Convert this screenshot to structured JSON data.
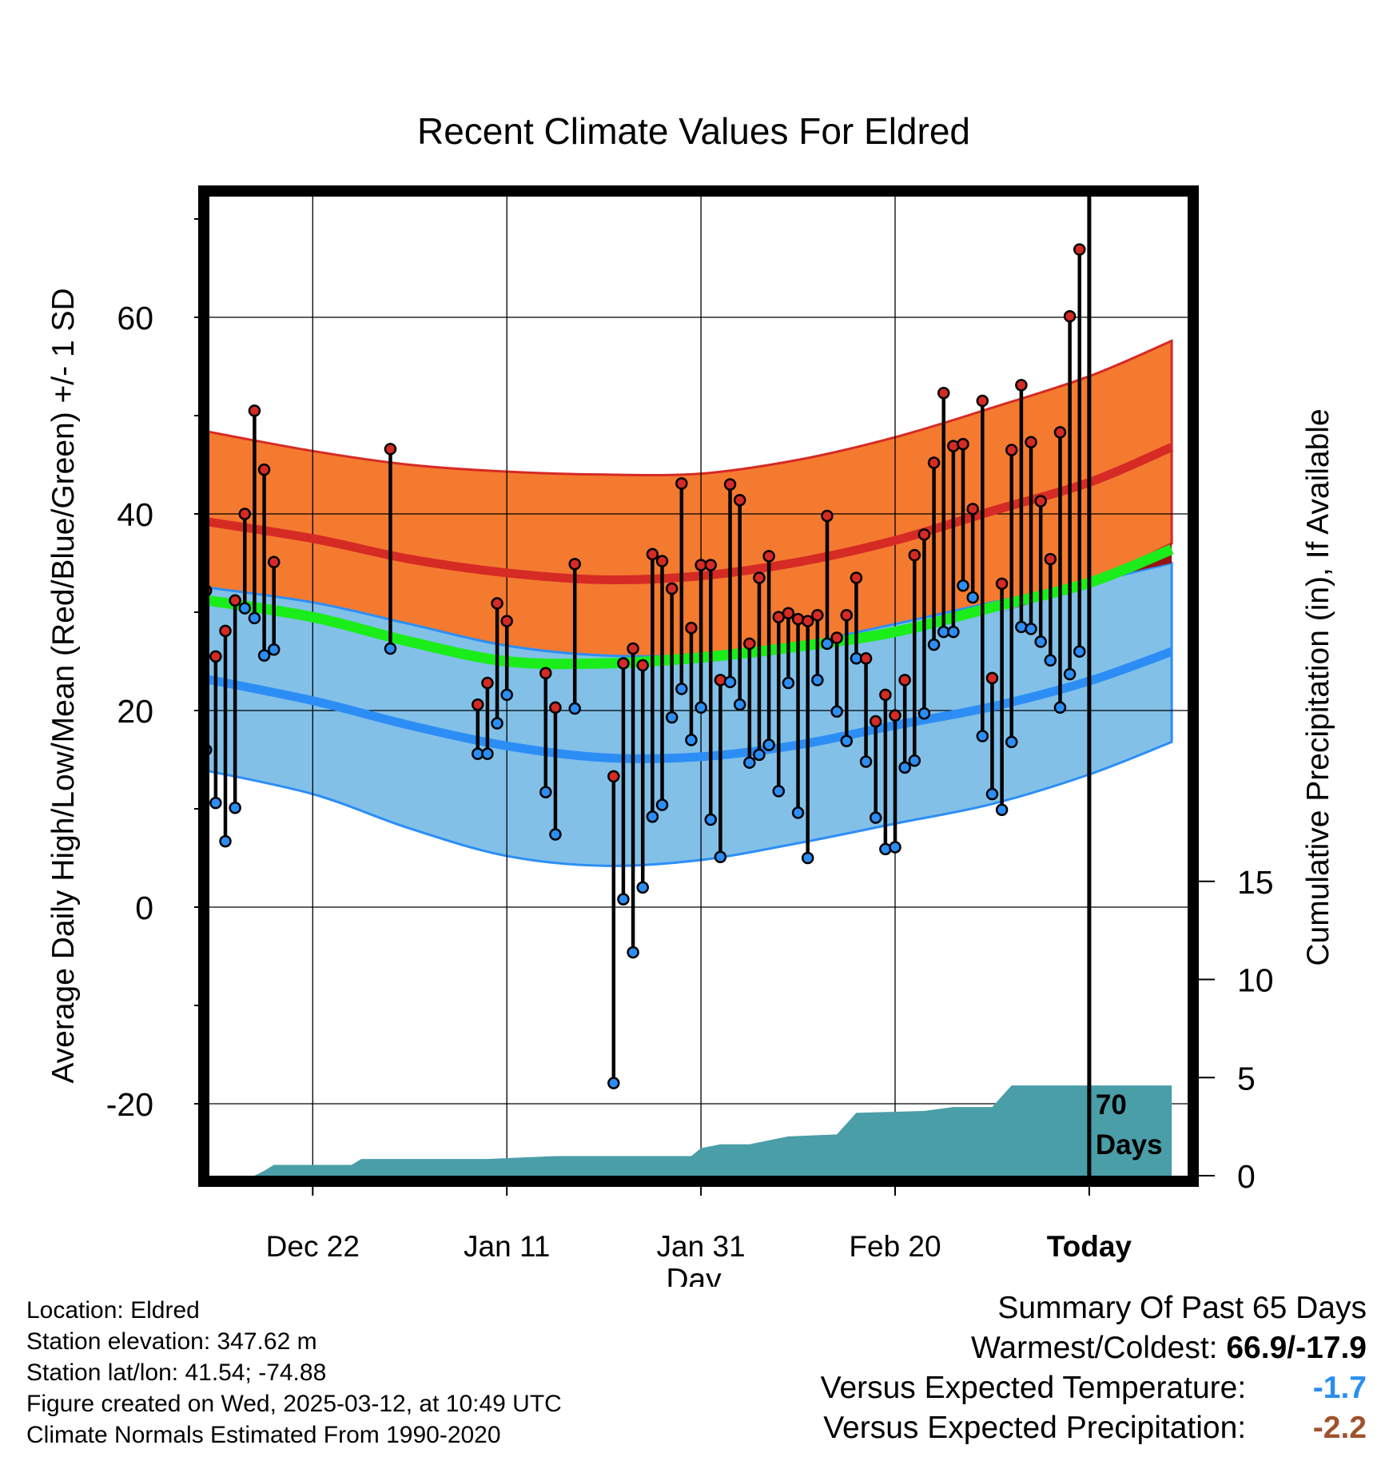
{
  "chart_data": {
    "type": "line",
    "title": "Recent Climate Values For Eldred",
    "xlabel": "Day",
    "ylabel": "Average Daily High/Low/Mean (Red/Blue/Green) +/- 1 SD",
    "y2label": "Cumulative Precipitation (in), If Available",
    "ylim": [
      -27.5,
      72
    ],
    "y2lim": [
      0,
      50
    ],
    "xlim": [
      -70,
      10
    ],
    "grid": true,
    "yticks": [
      "60",
      "40",
      "20",
      "0",
      "-20"
    ],
    "y2ticks": [
      "15",
      "10",
      "5",
      "0"
    ],
    "xticks": [
      {
        "day": -60,
        "label": "Dec 22"
      },
      {
        "day": -40,
        "label": "Jan 11"
      },
      {
        "day": -20,
        "label": "Jan 31"
      },
      {
        "day": 0,
        "label": "Feb 20"
      },
      {
        "day": 20,
        "label": "Today"
      }
    ],
    "today_label": [
      "70",
      "Days"
    ],
    "normals": {
      "days": [
        -71.5,
        -60,
        -50,
        -40,
        -30,
        -20,
        -10,
        0,
        10,
        20,
        28.5
      ],
      "high_mean": [
        39.3,
        37.5,
        35.4,
        34.0,
        33.3,
        33.7,
        35.1,
        37.3,
        40.3,
        43.2,
        46.8
      ],
      "high_sd_upper": [
        48.5,
        46.4,
        45.0,
        44.3,
        44.0,
        44.1,
        45.5,
        47.8,
        50.8,
        54.0,
        57.6
      ],
      "high_sd_lower": [
        31.5,
        29.0,
        26.5,
        24.5,
        23.0,
        23.2,
        25.0,
        27.0,
        29.7,
        33.0,
        37.0
      ],
      "low_mean": [
        23.3,
        21.0,
        18.5,
        16.4,
        15.2,
        15.3,
        16.5,
        18.5,
        20.4,
        23.0,
        26.0
      ],
      "low_sd_upper": [
        32.6,
        31.0,
        28.8,
        26.6,
        25.6,
        25.7,
        26.8,
        28.8,
        31.0,
        33.0,
        35.0
      ],
      "low_sd_lower": [
        14.0,
        11.5,
        8.0,
        5.2,
        4.2,
        4.8,
        6.5,
        8.5,
        10.5,
        13.5,
        16.8
      ],
      "mean": [
        31.3,
        29.5,
        27.0,
        25.0,
        24.8,
        25.4,
        26.5,
        28.0,
        30.5,
        33.0,
        36.4
      ]
    },
    "daily": [
      {
        "day": -71,
        "high": 32.2,
        "low": 16.0
      },
      {
        "day": -70,
        "high": 25.5,
        "low": 10.6
      },
      {
        "day": -69,
        "high": 28.1,
        "low": 6.7
      },
      {
        "day": -68,
        "high": 31.2,
        "low": 10.1
      },
      {
        "day": -67,
        "high": 40.0,
        "low": 30.4
      },
      {
        "day": -66,
        "high": 50.5,
        "low": 29.4
      },
      {
        "day": -65,
        "high": 44.5,
        "low": 25.6
      },
      {
        "day": -64,
        "high": 35.1,
        "low": 26.2
      },
      {
        "day": -52,
        "high": 46.6,
        "low": 26.3
      },
      {
        "day": -43,
        "high": 20.6,
        "low": 15.6
      },
      {
        "day": -42,
        "high": 22.8,
        "low": 15.6
      },
      {
        "day": -41,
        "high": 30.9,
        "low": 18.7
      },
      {
        "day": -40,
        "high": 29.1,
        "low": 21.6
      },
      {
        "day": -36,
        "high": 23.8,
        "low": 11.7
      },
      {
        "day": -35,
        "high": 20.3,
        "low": 7.4
      },
      {
        "day": -33,
        "high": 34.9,
        "low": 20.2
      },
      {
        "day": -29,
        "high": 13.3,
        "low": -17.9
      },
      {
        "day": -28,
        "high": 24.8,
        "low": 0.8
      },
      {
        "day": -27,
        "high": 26.3,
        "low": -4.6
      },
      {
        "day": -26,
        "high": 24.6,
        "low": 2.0
      },
      {
        "day": -25,
        "high": 35.9,
        "low": 9.2
      },
      {
        "day": -24,
        "high": 35.2,
        "low": 10.4
      },
      {
        "day": -23,
        "high": 32.4,
        "low": 19.3
      },
      {
        "day": -22,
        "high": 43.1,
        "low": 22.2
      },
      {
        "day": -21,
        "high": 28.4,
        "low": 17.0
      },
      {
        "day": -20,
        "high": 34.8,
        "low": 20.3
      },
      {
        "day": -19,
        "high": 34.8,
        "low": 8.9
      },
      {
        "day": -18,
        "high": 23.1,
        "low": 5.1
      },
      {
        "day": -17,
        "high": 43.0,
        "low": 22.9
      },
      {
        "day": -16,
        "high": 41.4,
        "low": 20.6
      },
      {
        "day": -15,
        "high": 26.8,
        "low": 14.7
      },
      {
        "day": -14,
        "high": 33.5,
        "low": 15.5
      },
      {
        "day": -13,
        "high": 35.7,
        "low": 16.5
      },
      {
        "day": -12,
        "high": 29.5,
        "low": 11.8
      },
      {
        "day": -11,
        "high": 29.9,
        "low": 22.8
      },
      {
        "day": -10,
        "high": 29.3,
        "low": 9.6
      },
      {
        "day": -9,
        "high": 29.1,
        "low": 5.0
      },
      {
        "day": -8,
        "high": 29.7,
        "low": 23.1
      },
      {
        "day": -7,
        "high": 39.8,
        "low": 26.8
      },
      {
        "day": -6,
        "high": 27.4,
        "low": 19.9
      },
      {
        "day": -5,
        "high": 29.7,
        "low": 16.9
      },
      {
        "day": -4,
        "high": 33.5,
        "low": 25.3
      },
      {
        "day": -3,
        "high": 25.3,
        "low": 14.8
      },
      {
        "day": -2,
        "high": 18.9,
        "low": 9.1
      },
      {
        "day": -1,
        "high": 21.6,
        "low": 5.9
      },
      {
        "day": 0,
        "high": 19.5,
        "low": 6.1
      },
      {
        "day": 1,
        "high": 23.1,
        "low": 14.2
      },
      {
        "day": 2,
        "high": 35.8,
        "low": 14.9
      },
      {
        "day": 3,
        "high": 37.9,
        "low": 19.7
      },
      {
        "day": 4,
        "high": 45.2,
        "low": 26.7
      },
      {
        "day": 5,
        "high": 52.3,
        "low": 28.0
      },
      {
        "day": 6,
        "high": 46.9,
        "low": 28.0
      },
      {
        "day": 7,
        "high": 47.1,
        "low": 32.7
      },
      {
        "day": 8,
        "high": 40.5,
        "low": 31.5
      },
      {
        "day": 9,
        "high": 51.5,
        "low": 17.4
      },
      {
        "day": 10,
        "high": 23.3,
        "low": 11.5
      },
      {
        "day": 11,
        "high": 32.9,
        "low": 9.9
      },
      {
        "day": 12,
        "high": 46.5,
        "low": 16.8
      },
      {
        "day": 13,
        "high": 53.1,
        "low": 28.5
      },
      {
        "day": 14,
        "high": 47.3,
        "low": 28.3
      },
      {
        "day": 15,
        "high": 41.3,
        "low": 27.0
      },
      {
        "day": 16,
        "high": 35.4,
        "low": 25.1
      },
      {
        "day": 17,
        "high": 48.3,
        "low": 20.3
      },
      {
        "day": 18,
        "high": 60.1,
        "low": 23.7
      },
      {
        "day": 19,
        "high": 66.9,
        "low": 26.0
      }
    ],
    "precip": [
      {
        "day": -71.5,
        "value": 0.0
      },
      {
        "day": -66,
        "value": 0.0
      },
      {
        "day": -65,
        "value": 0.25
      },
      {
        "day": -64,
        "value": 0.55
      },
      {
        "day": -56,
        "value": 0.55
      },
      {
        "day": -55,
        "value": 0.85
      },
      {
        "day": -42,
        "value": 0.85
      },
      {
        "day": -35,
        "value": 1.0
      },
      {
        "day": -21,
        "value": 1.0
      },
      {
        "day": -20,
        "value": 1.4
      },
      {
        "day": -18,
        "value": 1.6
      },
      {
        "day": -15,
        "value": 1.6
      },
      {
        "day": -13,
        "value": 1.8
      },
      {
        "day": -11,
        "value": 2.0
      },
      {
        "day": -6,
        "value": 2.1
      },
      {
        "day": -4,
        "value": 3.2
      },
      {
        "day": 3,
        "value": 3.3
      },
      {
        "day": 6,
        "value": 3.5
      },
      {
        "day": 10,
        "value": 3.5
      },
      {
        "day": 12,
        "value": 4.6
      },
      {
        "day": 28.5,
        "value": 4.6
      }
    ]
  },
  "footer": {
    "location": "Location: Eldred",
    "elevation": "Station elevation: 347.62 m",
    "latlon": "Station lat/lon: 41.54; -74.88",
    "created": "Figure created on Wed, 2025-03-12, at 10:49 UTC",
    "normals": "Climate Normals Estimated From 1990-2020"
  },
  "summary": {
    "title": "Summary Of Past 65 Days",
    "warm_cold_label": "Warmest/Coldest:",
    "warm_cold_value": "66.9/-17.9",
    "temp_label": "Versus Expected Temperature:",
    "temp_value": "-1.7",
    "precip_label": "Versus Expected Precipitation:",
    "precip_value": "-2.2"
  },
  "colors": {
    "high": "#d62a24",
    "high_band": "#f47a30",
    "low": "#2c8ef5",
    "low_band": "#82c0e8",
    "mean": "#1aed1a",
    "overlap": "#941414",
    "precip": "#4a9ea8",
    "temp_value": "#2a8ef0",
    "precip_value": "#a0522d"
  }
}
